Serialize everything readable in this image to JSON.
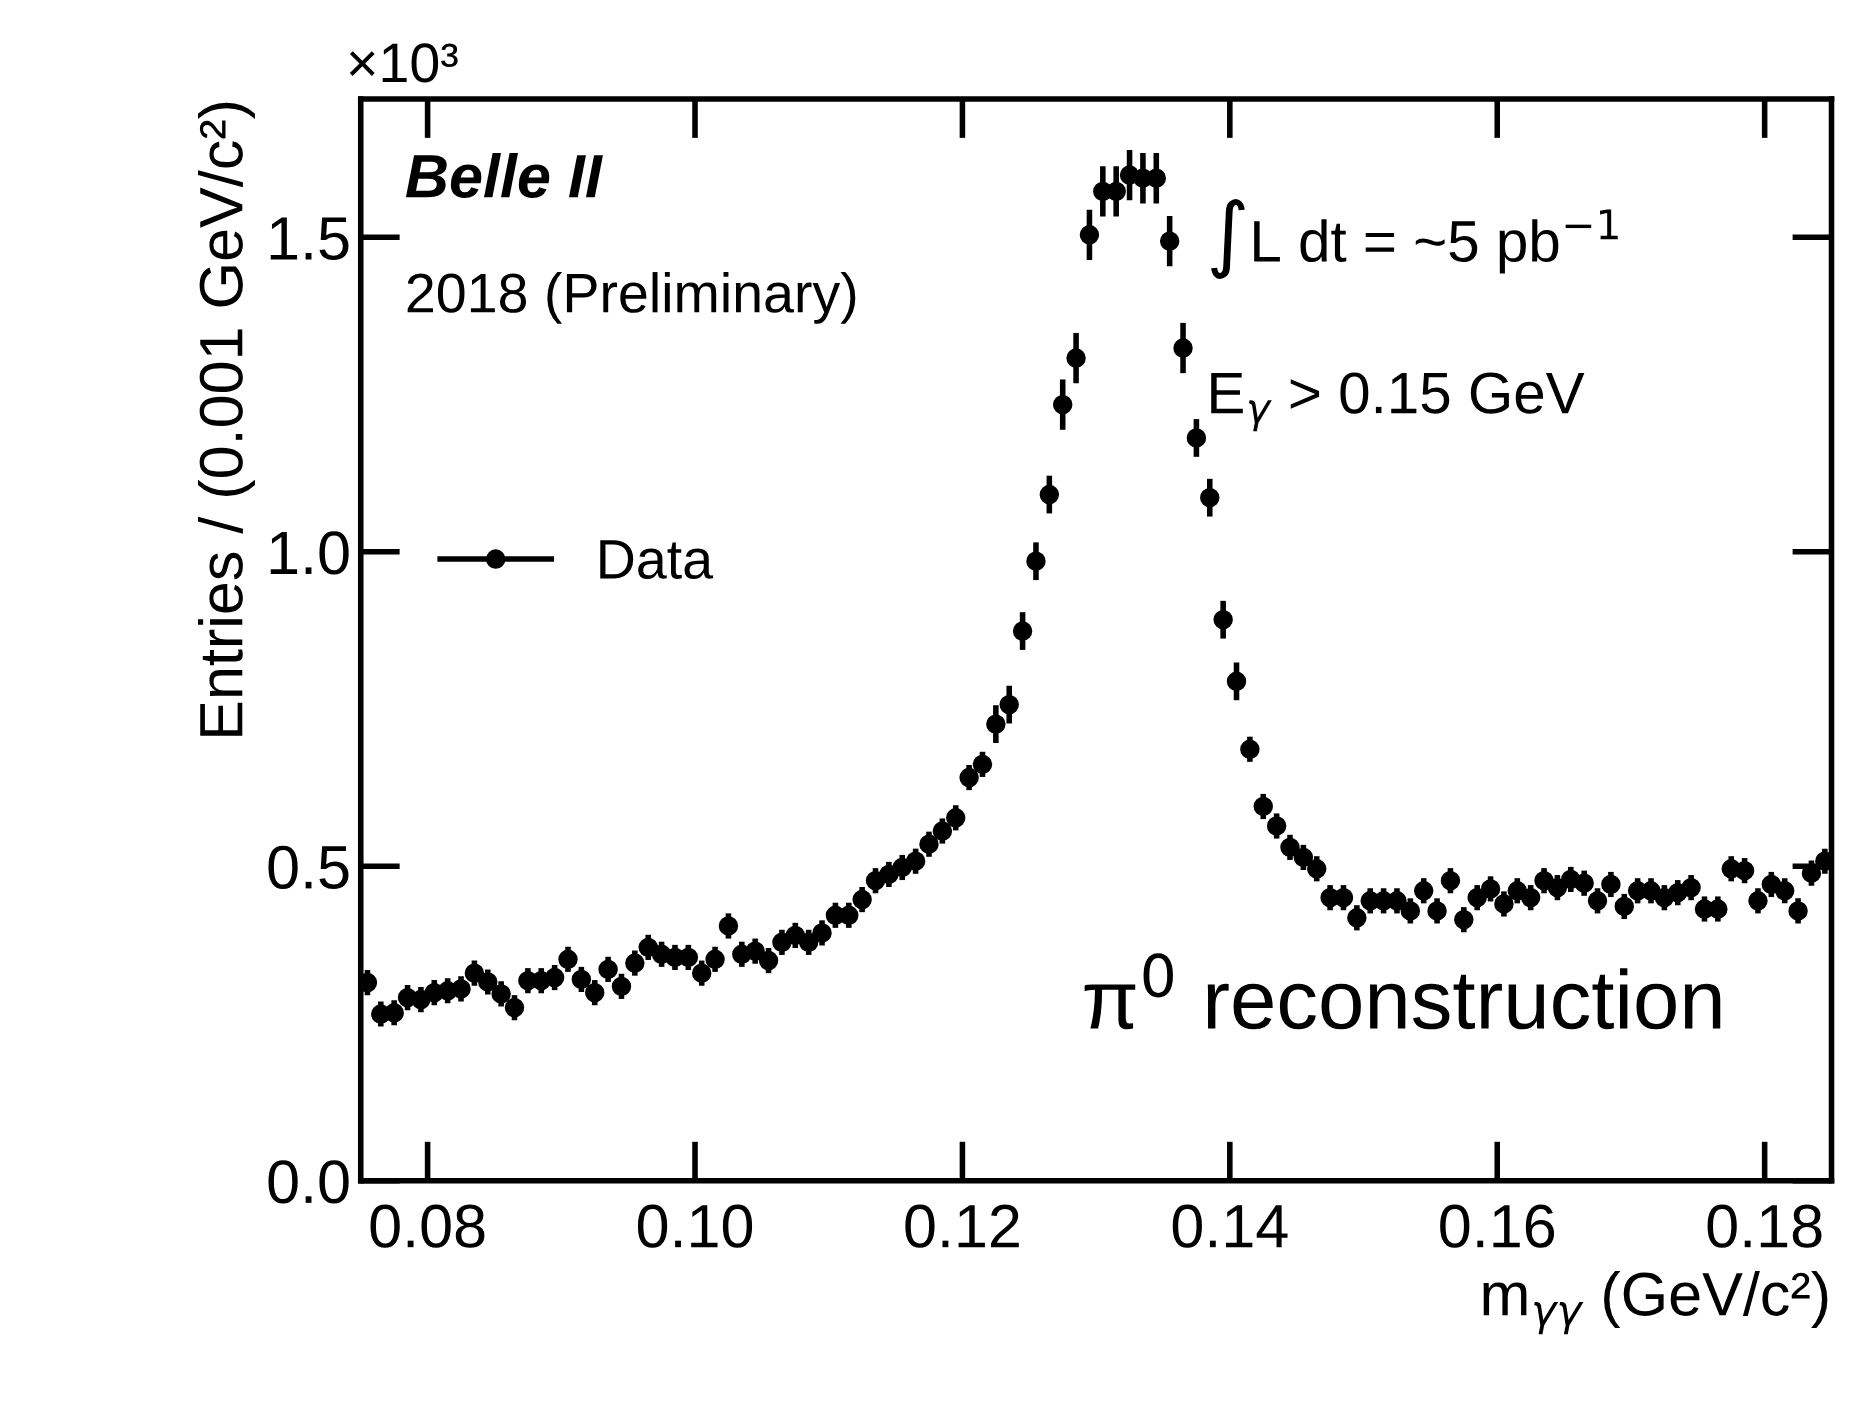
{
  "chart_data": {
    "type": "scatter",
    "xlabel": "m$_{γγ}$ (GeV/c²)",
    "ylabel": "Entries / (0.001 GeV/c²)",
    "x": [
      0.0755,
      0.0765,
      0.0775,
      0.0785,
      0.0795,
      0.0805,
      0.0815,
      0.0825,
      0.0835,
      0.0845,
      0.0855,
      0.0865,
      0.0875,
      0.0885,
      0.0895,
      0.0905,
      0.0915,
      0.0925,
      0.0935,
      0.0945,
      0.0955,
      0.0965,
      0.0975,
      0.0985,
      0.0995,
      0.1005,
      0.1015,
      0.1025,
      0.1035,
      0.1045,
      0.1055,
      0.1065,
      0.1075,
      0.1085,
      0.1095,
      0.1105,
      0.1115,
      0.1125,
      0.1135,
      0.1145,
      0.1155,
      0.1165,
      0.1175,
      0.1185,
      0.1195,
      0.1205,
      0.1215,
      0.1225,
      0.1235,
      0.1245,
      0.1255,
      0.1265,
      0.1275,
      0.1285,
      0.1295,
      0.1305,
      0.1315,
      0.1325,
      0.1335,
      0.1345,
      0.1355,
      0.1365,
      0.1375,
      0.1385,
      0.1395,
      0.1405,
      0.1415,
      0.1425,
      0.1435,
      0.1445,
      0.1455,
      0.1465,
      0.1475,
      0.1485,
      0.1495,
      0.1505,
      0.1515,
      0.1525,
      0.1535,
      0.1545,
      0.1555,
      0.1565,
      0.1575,
      0.1585,
      0.1595,
      0.1605,
      0.1615,
      0.1625,
      0.1635,
      0.1645,
      0.1655,
      0.1665,
      0.1675,
      0.1685,
      0.1695,
      0.1705,
      0.1715,
      0.1725,
      0.1735,
      0.1745,
      0.1755,
      0.1765,
      0.1775,
      0.1785,
      0.1795,
      0.1805,
      0.1815,
      0.1825,
      0.1835,
      0.1845
    ],
    "series": [
      {
        "name": "Data",
        "color": "#000000",
        "values": [
          0.315,
          0.265,
          0.267,
          0.291,
          0.288,
          0.299,
          0.302,
          0.305,
          0.33,
          0.316,
          0.297,
          0.275,
          0.318,
          0.318,
          0.323,
          0.352,
          0.32,
          0.299,
          0.336,
          0.309,
          0.346,
          0.371,
          0.36,
          0.355,
          0.355,
          0.33,
          0.352,
          0.405,
          0.36,
          0.365,
          0.35,
          0.379,
          0.39,
          0.379,
          0.394,
          0.422,
          0.422,
          0.447,
          0.477,
          0.487,
          0.498,
          0.508,
          0.535,
          0.556,
          0.577,
          0.641,
          0.662,
          0.726,
          0.757,
          0.874,
          0.985,
          1.091,
          1.234,
          1.308,
          1.504,
          1.573,
          1.573,
          1.599,
          1.594,
          1.594,
          1.494,
          1.324,
          1.181,
          1.086,
          0.892,
          0.794,
          0.686,
          0.595,
          0.564,
          0.53,
          0.514,
          0.496,
          0.45,
          0.45,
          0.418,
          0.445,
          0.445,
          0.445,
          0.429,
          0.461,
          0.429,
          0.477,
          0.415,
          0.45,
          0.464,
          0.44,
          0.461,
          0.45,
          0.477,
          0.466,
          0.479,
          0.473,
          0.445,
          0.471,
          0.436,
          0.461,
          0.461,
          0.45,
          0.458,
          0.466,
          0.432,
          0.432,
          0.496,
          0.493,
          0.445,
          0.471,
          0.461,
          0.429,
          0.489,
          0.508
        ],
        "errors": [
          0.02,
          0.02,
          0.02,
          0.02,
          0.02,
          0.02,
          0.02,
          0.02,
          0.02,
          0.02,
          0.02,
          0.02,
          0.02,
          0.02,
          0.02,
          0.02,
          0.02,
          0.02,
          0.02,
          0.02,
          0.02,
          0.02,
          0.02,
          0.02,
          0.02,
          0.02,
          0.02,
          0.02,
          0.02,
          0.02,
          0.02,
          0.02,
          0.02,
          0.02,
          0.02,
          0.02,
          0.02,
          0.02,
          0.02,
          0.02,
          0.02,
          0.02,
          0.02,
          0.02,
          0.02,
          0.02,
          0.02,
          0.03,
          0.03,
          0.03,
          0.03,
          0.03,
          0.04,
          0.04,
          0.04,
          0.04,
          0.04,
          0.04,
          0.04,
          0.04,
          0.04,
          0.04,
          0.03,
          0.03,
          0.03,
          0.03,
          0.02,
          0.02,
          0.02,
          0.02,
          0.02,
          0.02,
          0.02,
          0.02,
          0.02,
          0.02,
          0.02,
          0.02,
          0.02,
          0.02,
          0.02,
          0.02,
          0.02,
          0.02,
          0.02,
          0.02,
          0.02,
          0.02,
          0.02,
          0.02,
          0.02,
          0.02,
          0.02,
          0.02,
          0.02,
          0.02,
          0.02,
          0.02,
          0.02,
          0.02,
          0.02,
          0.02,
          0.02,
          0.02,
          0.02,
          0.02,
          0.02,
          0.02,
          0.02,
          0.02
        ]
      }
    ],
    "xlim": [
      0.075,
      0.185
    ],
    "xticks": [
      0.08,
      {
        "value": 0.1,
        "label": "0.10"
      },
      0.12,
      0.14,
      0.16,
      0.18
    ],
    "ylim": [
      0,
      1.72
    ],
    "yticks": [
      {
        "value": 0,
        "label": "0.0"
      },
      0.5,
      {
        "value": 1,
        "label": "1.0"
      },
      1.5
    ],
    "marker": "circle",
    "legend": "left",
    "grid": false,
    "annotations": [
      "×10³",
      "Belle II",
      "2018 (Preliminary)",
      "∫L dt = ~5 pb$^{−1}$",
      "E$_{γ}$ > 0.15 GeV",
      "π$^{0}$ reconstruction"
    ]
  }
}
